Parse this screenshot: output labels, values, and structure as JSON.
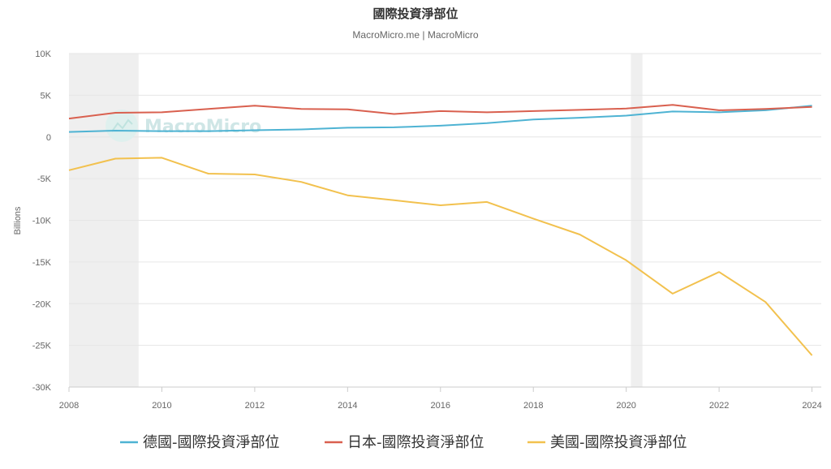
{
  "chart_data": {
    "type": "line",
    "title": "國際投資淨部位",
    "subtitle": "MacroMicro.me | MacroMicro",
    "watermark": "MacroMicro",
    "ylabel": "Billions",
    "ylim": [
      -30000,
      10000
    ],
    "xlim": [
      2008,
      2024.2
    ],
    "yticks": [
      10000,
      5000,
      0,
      -5000,
      -10000,
      -15000,
      -20000,
      -25000,
      -30000
    ],
    "ytick_labels": [
      "10K",
      "5K",
      "0",
      "-5K",
      "-10K",
      "-15K",
      "-20K",
      "-25K",
      "-30K"
    ],
    "xticks": [
      2008,
      2010,
      2012,
      2014,
      2016,
      2018,
      2020,
      2022,
      2024
    ],
    "xtick_labels": [
      "2008",
      "2010",
      "2012",
      "2014",
      "2016",
      "2018",
      "2020",
      "2022",
      "2024"
    ],
    "grid": true,
    "legend_position": "bottom",
    "recession_bands": [
      [
        2008,
        2009.5
      ],
      [
        2020.1,
        2020.35
      ]
    ],
    "x": [
      2008,
      2009,
      2010,
      2011,
      2012,
      2013,
      2014,
      2015,
      2016,
      2017,
      2018,
      2019,
      2020,
      2021,
      2022,
      2023,
      2024
    ],
    "series": [
      {
        "name": "德國-國際投資淨部位",
        "color": "#4eb3d3",
        "values": [
          600,
          750,
          700,
          700,
          800,
          900,
          1100,
          1150,
          1350,
          1650,
          2100,
          2300,
          2550,
          3050,
          2950,
          3200,
          3750
        ]
      },
      {
        "name": "日本-國際投資淨部位",
        "color": "#d9604f",
        "values": [
          2200,
          2900,
          2950,
          3350,
          3750,
          3350,
          3300,
          2750,
          3100,
          2950,
          3100,
          3250,
          3400,
          3850,
          3200,
          3350,
          3600
        ]
      },
      {
        "name": "美國-國際投資淨部位",
        "color": "#f2c14e",
        "values": [
          -4000,
          -2600,
          -2500,
          -4400,
          -4500,
          -5400,
          -7000,
          -7600,
          -8200,
          -7800,
          -9800,
          -11700,
          -14800,
          -18800,
          -16200,
          -19800,
          -26200
        ]
      }
    ]
  }
}
